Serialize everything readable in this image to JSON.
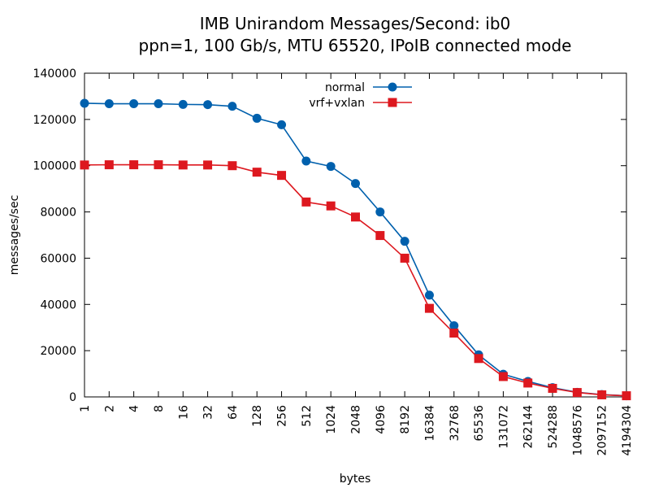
{
  "chart_data": {
    "type": "line",
    "title": "IMB Unirandom Messages/Second: ib0",
    "subtitle": "ppn=1, 100 Gb/s, MTU 65520, IPoIB connected mode",
    "xlabel": "bytes",
    "ylabel": "messages/sec",
    "ylim": [
      0,
      140000
    ],
    "yticks": [
      0,
      20000,
      40000,
      60000,
      80000,
      100000,
      120000,
      140000
    ],
    "categories": [
      "1",
      "2",
      "4",
      "8",
      "16",
      "32",
      "64",
      "128",
      "256",
      "512",
      "1024",
      "2048",
      "4096",
      "8192",
      "16384",
      "32768",
      "65536",
      "131072",
      "262144",
      "524288",
      "1048576",
      "2097152",
      "4194304"
    ],
    "legend_position": "top-center",
    "grid": false,
    "series": [
      {
        "name": "normal",
        "color": "#0060ad",
        "marker": "circle",
        "values": [
          127000,
          126800,
          126800,
          126800,
          126500,
          126400,
          125700,
          120500,
          117700,
          102000,
          99700,
          92300,
          80000,
          67300,
          44000,
          30800,
          18200,
          9800,
          6700,
          4000,
          2000,
          1000,
          500
        ]
      },
      {
        "name": "vrf+vxlan",
        "color": "#dd181f",
        "marker": "square",
        "values": [
          100300,
          100400,
          100400,
          100400,
          100300,
          100300,
          100000,
          97200,
          95800,
          84300,
          82600,
          77800,
          69800,
          60000,
          38300,
          27600,
          16600,
          8800,
          6000,
          3700,
          1900,
          900,
          500
        ]
      }
    ]
  }
}
